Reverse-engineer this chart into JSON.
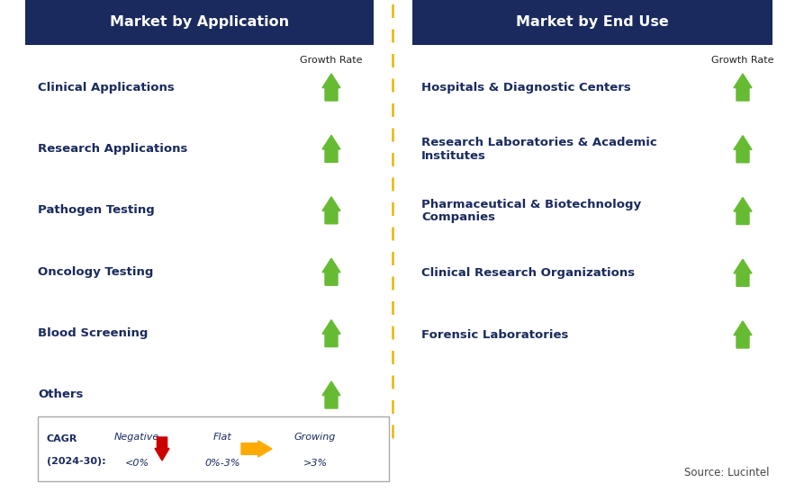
{
  "left_title": "Market by Application",
  "right_title": "Market by End Use",
  "left_items": [
    "Clinical Applications",
    "Research Applications",
    "Pathogen Testing",
    "Oncology Testing",
    "Blood Screening",
    "Others"
  ],
  "right_items": [
    "Hospitals & Diagnostic Centers",
    "Research Laboratories & Academic\nInstitutes",
    "Pharmaceutical & Biotechnology\nCompanies",
    "Clinical Research Organizations",
    "Forensic Laboratories"
  ],
  "header_bg": "#1a2a5e",
  "header_text": "#ffffff",
  "item_text_color": "#1a2a5e",
  "growth_rate_label": "Growth Rate",
  "arrow_up_color": "#66bb33",
  "arrow_down_color": "#cc0000",
  "arrow_flat_color": "#ffaa00",
  "dashed_line_color": "#e6b800",
  "source_text": "Source: Lucintel",
  "legend_cagr_line1": "CAGR",
  "legend_cagr_line2": "(2024-30):",
  "legend_negative_label": "Negative",
  "legend_negative_val": "<0%",
  "legend_flat_label": "Flat",
  "legend_flat_val": "0%-3%",
  "legend_growing_label": "Growing",
  "legend_growing_val": ">3%",
  "bg_color": "#ffffff"
}
